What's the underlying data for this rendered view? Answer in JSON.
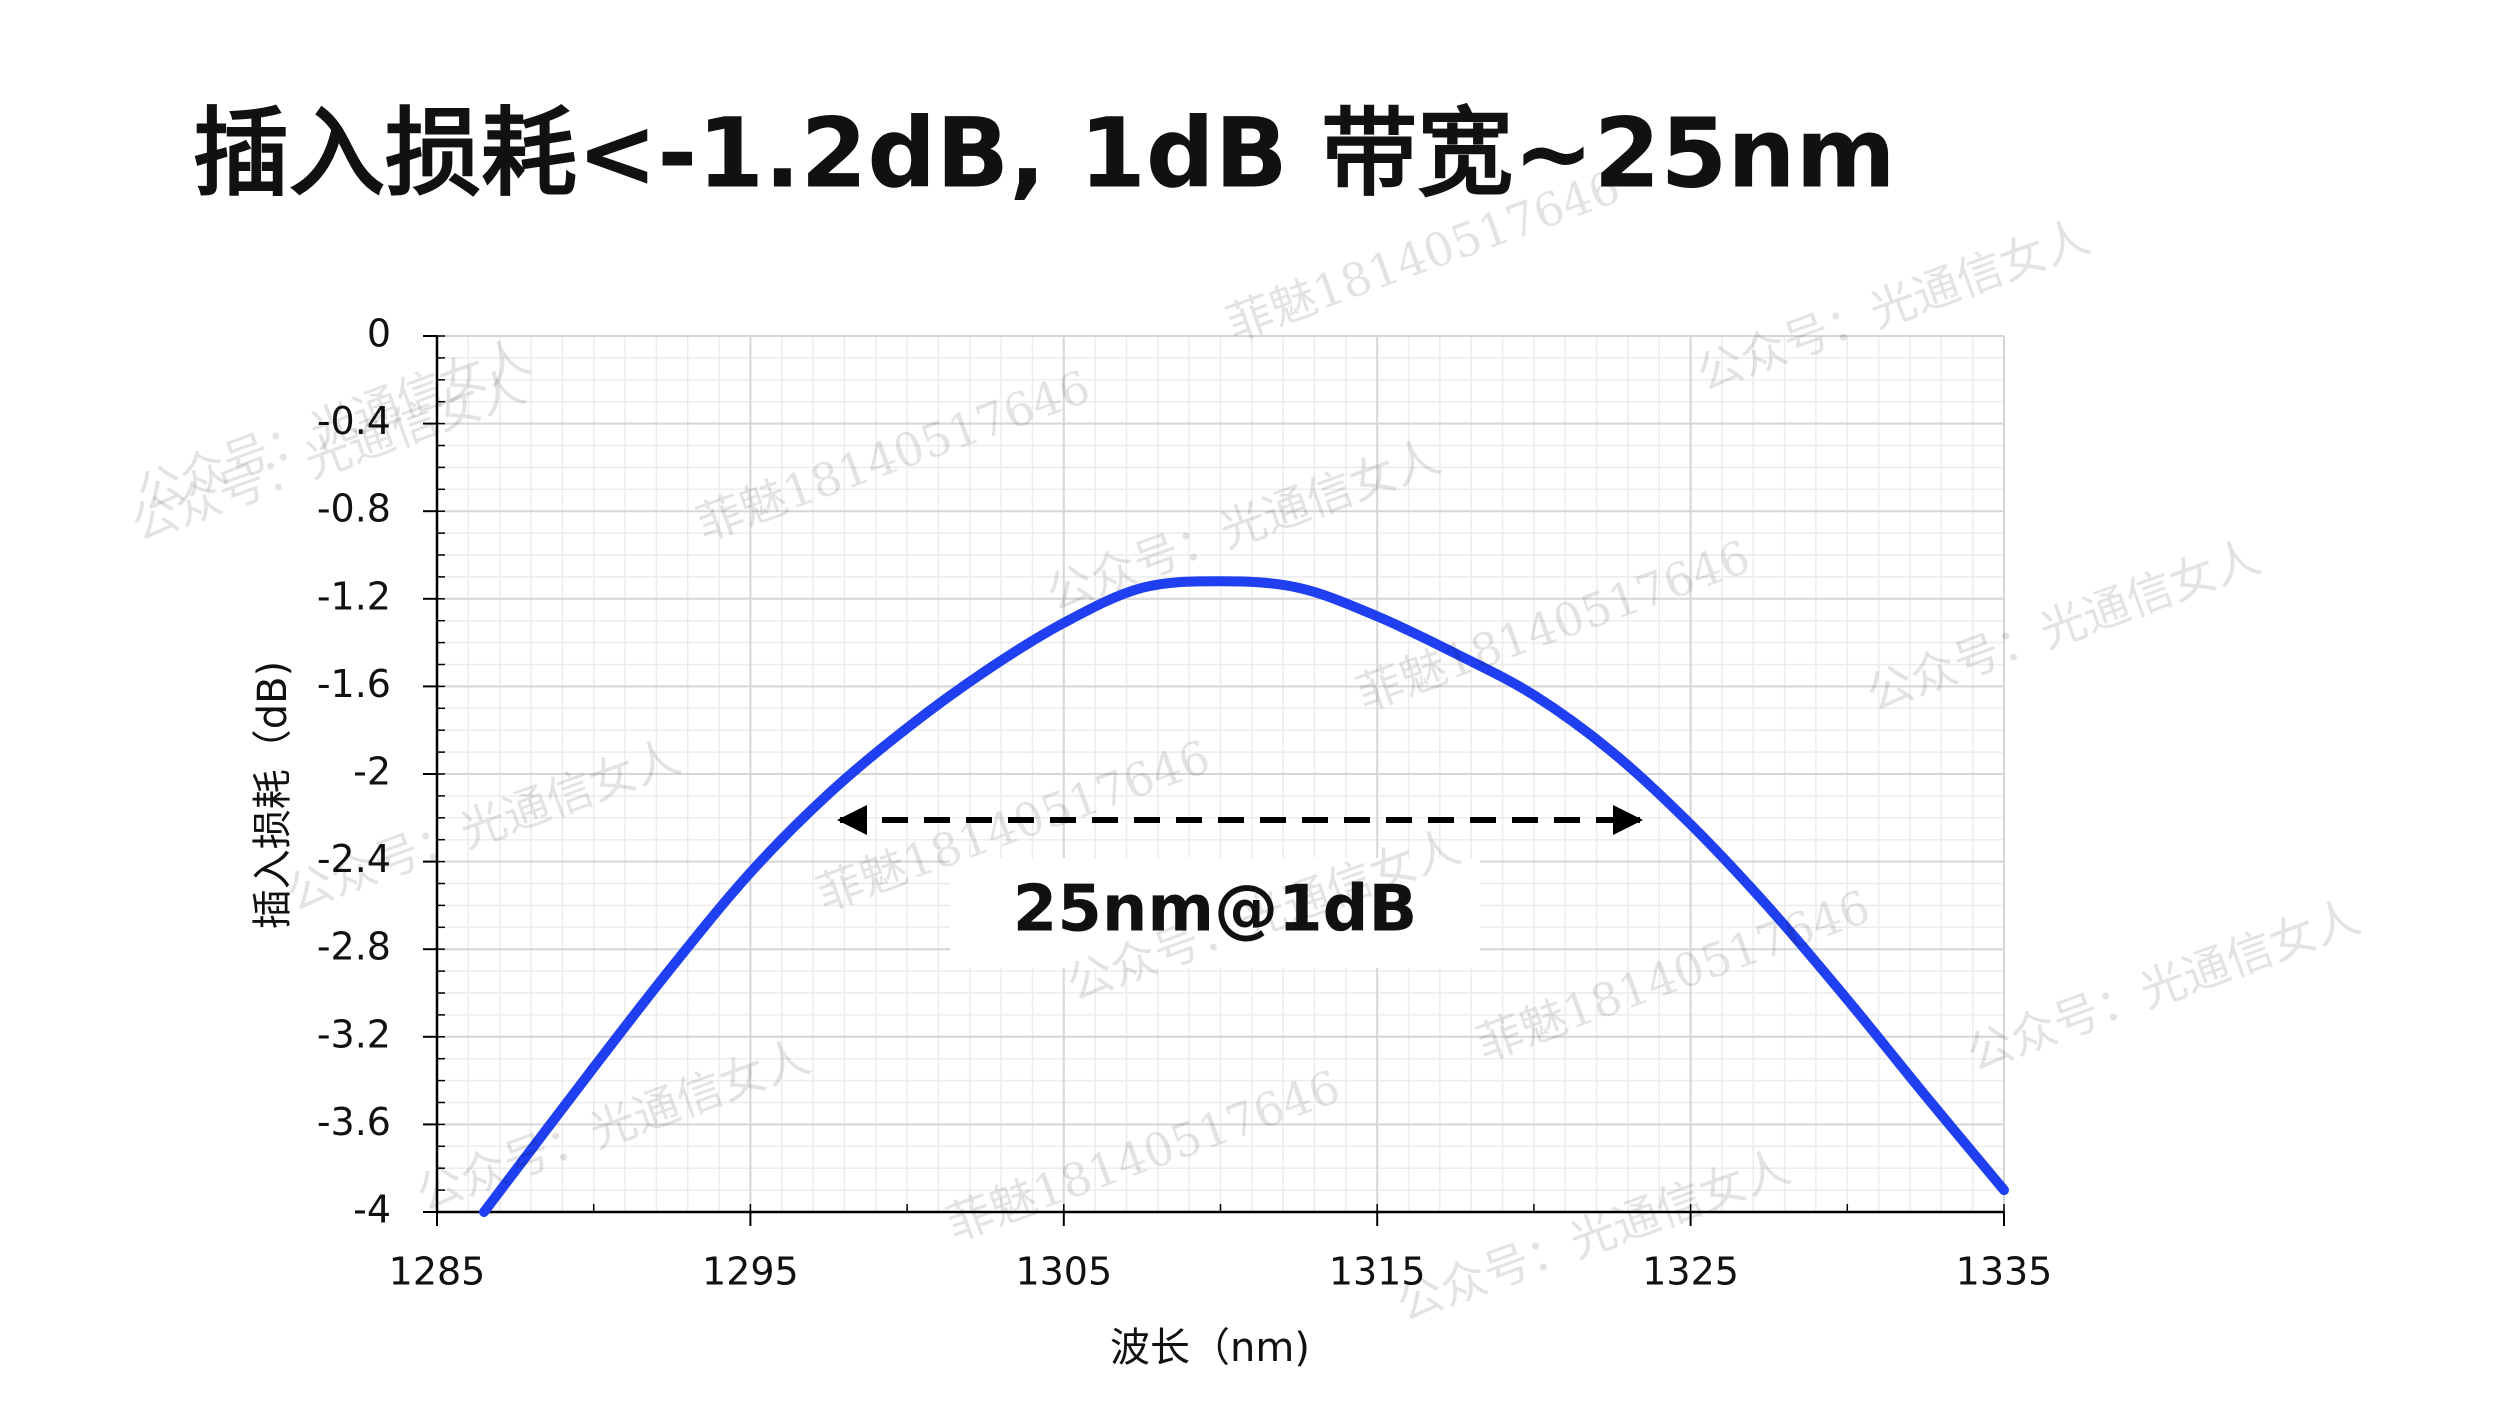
{
  "chart_data": {
    "type": "line",
    "title": "插入损耗<-1.2dB, 1dB 带宽~25nm",
    "x_label": "波长（nm)",
    "y_label": "插入损耗（dB)",
    "annotation": "25nm@1dB",
    "x": [
      1286.5,
      1290,
      1292.5,
      1295,
      1297.5,
      1300,
      1302.5,
      1305,
      1307.5,
      1310,
      1312.5,
      1315,
      1317.5,
      1320,
      1322.5,
      1325,
      1327.5,
      1330,
      1332.5,
      1335
    ],
    "series": [
      {
        "name": "插入损耗",
        "color": "#1f3ff0",
        "values": [
          -4.0,
          -3.34,
          -2.88,
          -2.45,
          -2.09,
          -1.79,
          -1.53,
          -1.31,
          -1.15,
          -1.12,
          -1.15,
          -1.28,
          -1.45,
          -1.64,
          -1.9,
          -2.23,
          -2.61,
          -3.03,
          -3.47,
          -3.9
        ]
      }
    ],
    "xlim": [
      1285,
      1335
    ],
    "xticks": [
      1285,
      1295,
      1305,
      1315,
      1325,
      1335
    ],
    "ylim": [
      -4,
      0
    ],
    "yticks": [
      0,
      -0.4,
      -0.8,
      -1.2,
      -1.6,
      -2,
      -2.4,
      -2.8,
      -3.2,
      -3.6,
      -4
    ],
    "grid": true
  },
  "watermarks": [
    "公众号：光通信女人",
    "菲魅18140517646"
  ]
}
